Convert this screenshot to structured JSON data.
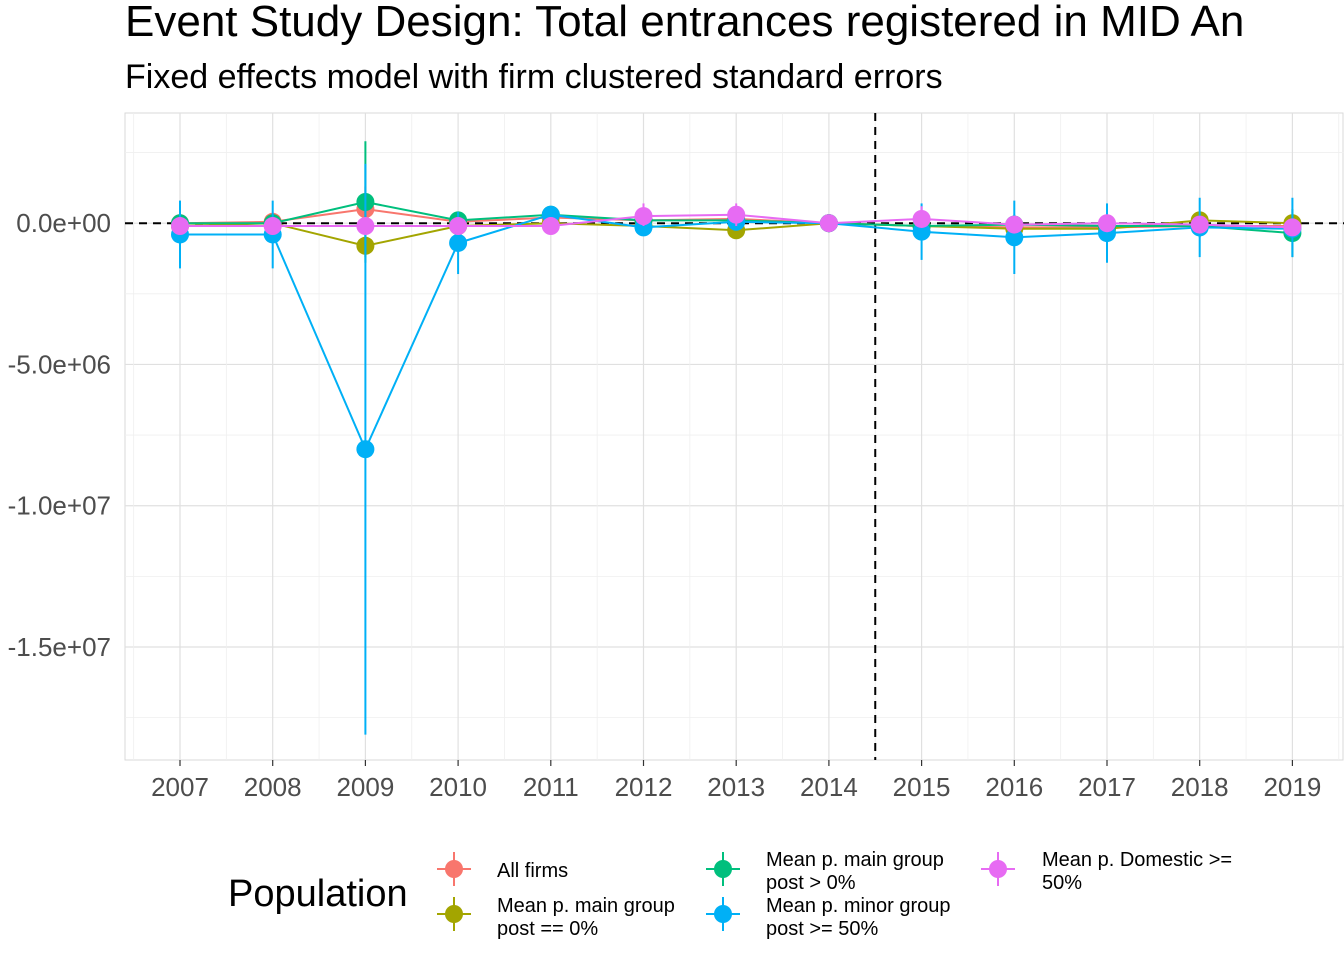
{
  "title": "Event Study Design: Total entrances registered in MID An",
  "subtitle": "Fixed effects model with firm clustered standard errors",
  "chart_data": {
    "type": "line",
    "x": [
      2007,
      2008,
      2009,
      2010,
      2011,
      2012,
      2013,
      2014,
      2015,
      2016,
      2017,
      2018,
      2019
    ],
    "x_tick_labels": [
      "2007",
      "2008",
      "2009",
      "2010",
      "2011",
      "2012",
      "2013",
      "2014",
      "2015",
      "2016",
      "2017",
      "2018",
      "2019"
    ],
    "ylim": [
      -19000000,
      3900000
    ],
    "y_ticks": [
      0,
      -5000000,
      -10000000,
      -15000000
    ],
    "y_tick_labels": [
      "0.0e+00",
      "-5.0e+06",
      "-1.0e+07",
      "-1.5e+07"
    ],
    "reference_lines": {
      "horizontal_y": 0,
      "vertical_x": 2014.5
    },
    "grid": true,
    "legend": {
      "title": "Population",
      "position": "bottom"
    },
    "series": [
      {
        "name": "All firms",
        "color": "#F8766D",
        "values": [
          0,
          50000,
          500000,
          50000,
          200000,
          100000,
          150000,
          0,
          -100000,
          -150000,
          -150000,
          -100000,
          -100000
        ],
        "lower": [
          -200000,
          -150000,
          -300000,
          -200000,
          0,
          -100000,
          -100000,
          0,
          -300000,
          -350000,
          -350000,
          -300000,
          -300000
        ],
        "upper": [
          200000,
          250000,
          1300000,
          300000,
          400000,
          300000,
          400000,
          0,
          100000,
          50000,
          50000,
          100000,
          100000
        ]
      },
      {
        "name": "Mean p. main group post == 0%",
        "color": "#A3A500",
        "values": [
          -100000,
          0,
          -800000,
          -100000,
          0,
          -100000,
          -250000,
          0,
          -100000,
          -200000,
          -200000,
          100000,
          0
        ],
        "lower": [
          -300000,
          -200000,
          -1200000,
          -300000,
          -200000,
          -300000,
          -500000,
          0,
          -300000,
          -400000,
          -400000,
          -200000,
          -250000
        ],
        "upper": [
          100000,
          200000,
          -400000,
          100000,
          200000,
          100000,
          0,
          0,
          100000,
          0,
          0,
          400000,
          250000
        ]
      },
      {
        "name": "Mean p. main group post > 0%",
        "color": "#00BF7D",
        "values": [
          0,
          0,
          750000,
          100000,
          300000,
          100000,
          100000,
          0,
          -100000,
          -50000,
          -100000,
          -100000,
          -350000
        ],
        "lower": [
          -300000,
          -300000,
          -1400000,
          -200000,
          0,
          -200000,
          -200000,
          0,
          -400000,
          -400000,
          -400000,
          -500000,
          -1200000
        ],
        "upper": [
          300000,
          300000,
          2900000,
          400000,
          600000,
          400000,
          400000,
          0,
          200000,
          300000,
          200000,
          300000,
          500000
        ]
      },
      {
        "name": "Mean p. minor group post >= 50%",
        "color": "#00B0F6",
        "values": [
          -400000,
          -400000,
          -8000000,
          -700000,
          300000,
          -150000,
          50000,
          0,
          -300000,
          -500000,
          -350000,
          -150000,
          -200000
        ],
        "lower": [
          -1600000,
          -1600000,
          -18100000,
          -1800000,
          100000,
          -400000,
          -200000,
          0,
          -1300000,
          -1800000,
          -1400000,
          -1200000,
          -1200000
        ],
        "upper": [
          800000,
          800000,
          2100000,
          400000,
          500000,
          100000,
          300000,
          0,
          700000,
          800000,
          700000,
          900000,
          900000
        ]
      },
      {
        "name": "Mean p. Domestic >= 50%",
        "color": "#E76BF3",
        "values": [
          -100000,
          -100000,
          -100000,
          -100000,
          -100000,
          250000,
          300000,
          0,
          150000,
          -50000,
          0,
          -50000,
          -150000
        ],
        "lower": [
          -300000,
          -300000,
          -300000,
          -300000,
          -300000,
          -100000,
          -100000,
          0,
          -100000,
          -250000,
          -250000,
          -250000,
          -400000
        ],
        "upper": [
          100000,
          100000,
          100000,
          100000,
          100000,
          700000,
          700000,
          0,
          600000,
          200000,
          250000,
          200000,
          100000
        ]
      }
    ]
  }
}
